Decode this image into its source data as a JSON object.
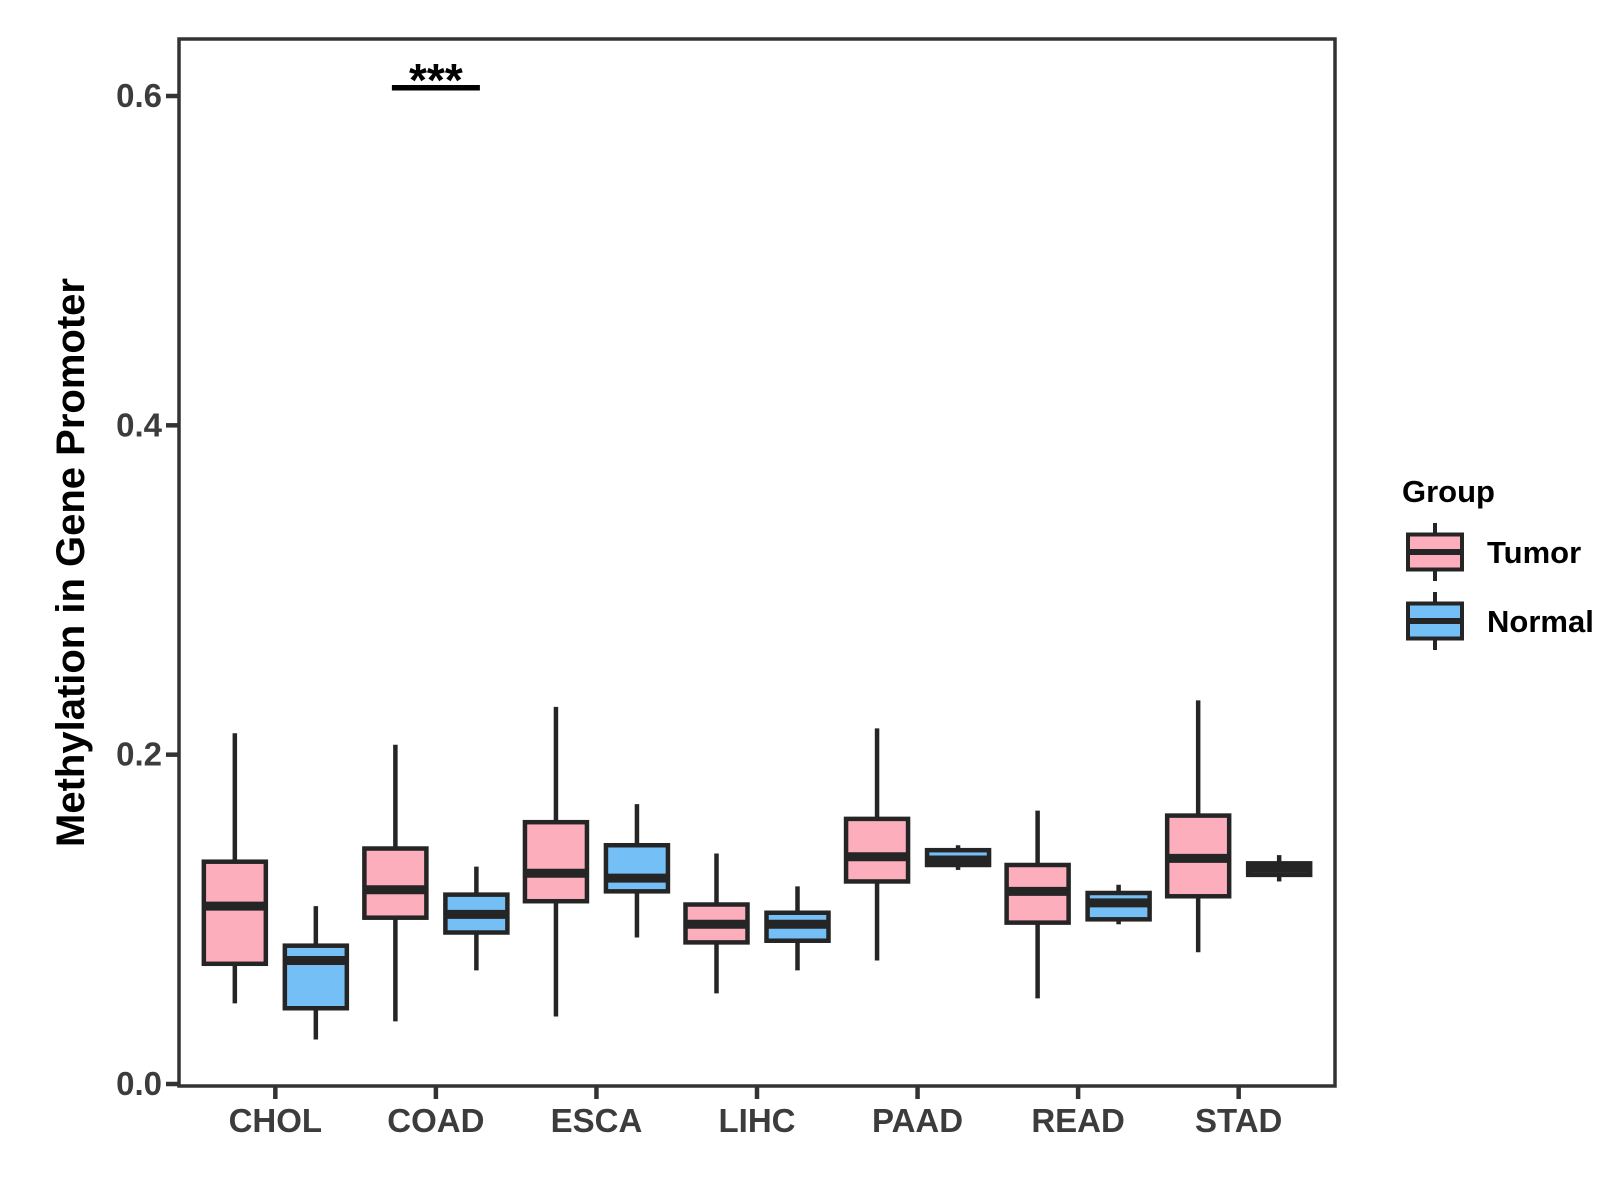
{
  "page": {
    "background": "#FFFFFF"
  },
  "chart_data": {
    "type": "boxplot",
    "title": "",
    "xlabel": "",
    "ylabel": "Methylation in Gene Promoter",
    "categories": [
      "CHOL",
      "COAD",
      "ESCA",
      "LIHC",
      "PAAD",
      "READ",
      "STAD"
    ],
    "y_ticks": [
      {
        "value": 0.0,
        "label": "0.0"
      },
      {
        "value": 0.2,
        "label": "0.2"
      },
      {
        "value": 0.4,
        "label": "0.4"
      },
      {
        "value": 0.6,
        "label": "0.6"
      }
    ],
    "ylim": [
      0.0,
      0.635
    ],
    "grid": false,
    "legend_position": "right",
    "legend": {
      "title": "Group",
      "entries": [
        {
          "label": "Tumor",
          "fill": "#FCAEBD"
        },
        {
          "label": "Normal",
          "fill": "#74BFF5"
        }
      ]
    },
    "colors": {
      "tumor_fill": "#FCAEBD",
      "normal_fill": "#74BFF5",
      "box_border": "#252525",
      "panel_border": "#333333",
      "tick_label": "#3C3C3C",
      "axis_title": "#000000",
      "annotation": "#000000"
    },
    "series": [
      {
        "name": "Tumor",
        "fill": "#FCAEBD",
        "boxes": [
          {
            "category": "CHOL",
            "whisker_low": 0.049,
            "q1": 0.073,
            "median": 0.108,
            "q3": 0.135,
            "whisker_high": 0.213
          },
          {
            "category": "COAD",
            "whisker_low": 0.038,
            "q1": 0.101,
            "median": 0.118,
            "q3": 0.143,
            "whisker_high": 0.206
          },
          {
            "category": "ESCA",
            "whisker_low": 0.041,
            "q1": 0.111,
            "median": 0.128,
            "q3": 0.159,
            "whisker_high": 0.229
          },
          {
            "category": "LIHC",
            "whisker_low": 0.055,
            "q1": 0.086,
            "median": 0.097,
            "q3": 0.109,
            "whisker_high": 0.14
          },
          {
            "category": "PAAD",
            "whisker_low": 0.075,
            "q1": 0.123,
            "median": 0.138,
            "q3": 0.161,
            "whisker_high": 0.216
          },
          {
            "category": "READ",
            "whisker_low": 0.052,
            "q1": 0.098,
            "median": 0.117,
            "q3": 0.133,
            "whisker_high": 0.166
          },
          {
            "category": "STAD",
            "whisker_low": 0.08,
            "q1": 0.114,
            "median": 0.137,
            "q3": 0.163,
            "whisker_high": 0.233
          }
        ]
      },
      {
        "name": "Normal",
        "fill": "#74BFF5",
        "boxes": [
          {
            "category": "CHOL",
            "whisker_low": 0.027,
            "q1": 0.046,
            "median": 0.075,
            "q3": 0.084,
            "whisker_high": 0.108
          },
          {
            "category": "COAD",
            "whisker_low": 0.069,
            "q1": 0.092,
            "median": 0.103,
            "q3": 0.115,
            "whisker_high": 0.132
          },
          {
            "category": "ESCA",
            "whisker_low": 0.089,
            "q1": 0.117,
            "median": 0.125,
            "q3": 0.145,
            "whisker_high": 0.17
          },
          {
            "category": "LIHC",
            "whisker_low": 0.069,
            "q1": 0.087,
            "median": 0.097,
            "q3": 0.104,
            "whisker_high": 0.12
          },
          {
            "category": "PAAD",
            "whisker_low": 0.13,
            "q1": 0.133,
            "median": 0.136,
            "q3": 0.142,
            "whisker_high": 0.145
          },
          {
            "category": "READ",
            "whisker_low": 0.097,
            "q1": 0.1,
            "median": 0.11,
            "q3": 0.116,
            "whisker_high": 0.121
          },
          {
            "category": "STAD",
            "whisker_low": 0.123,
            "q1": 0.127,
            "median": 0.131,
            "q3": 0.134,
            "whisker_high": 0.139
          }
        ]
      }
    ],
    "annotations": [
      {
        "type": "significance",
        "label": "***",
        "category": "COAD",
        "y": 0.605
      }
    ]
  }
}
